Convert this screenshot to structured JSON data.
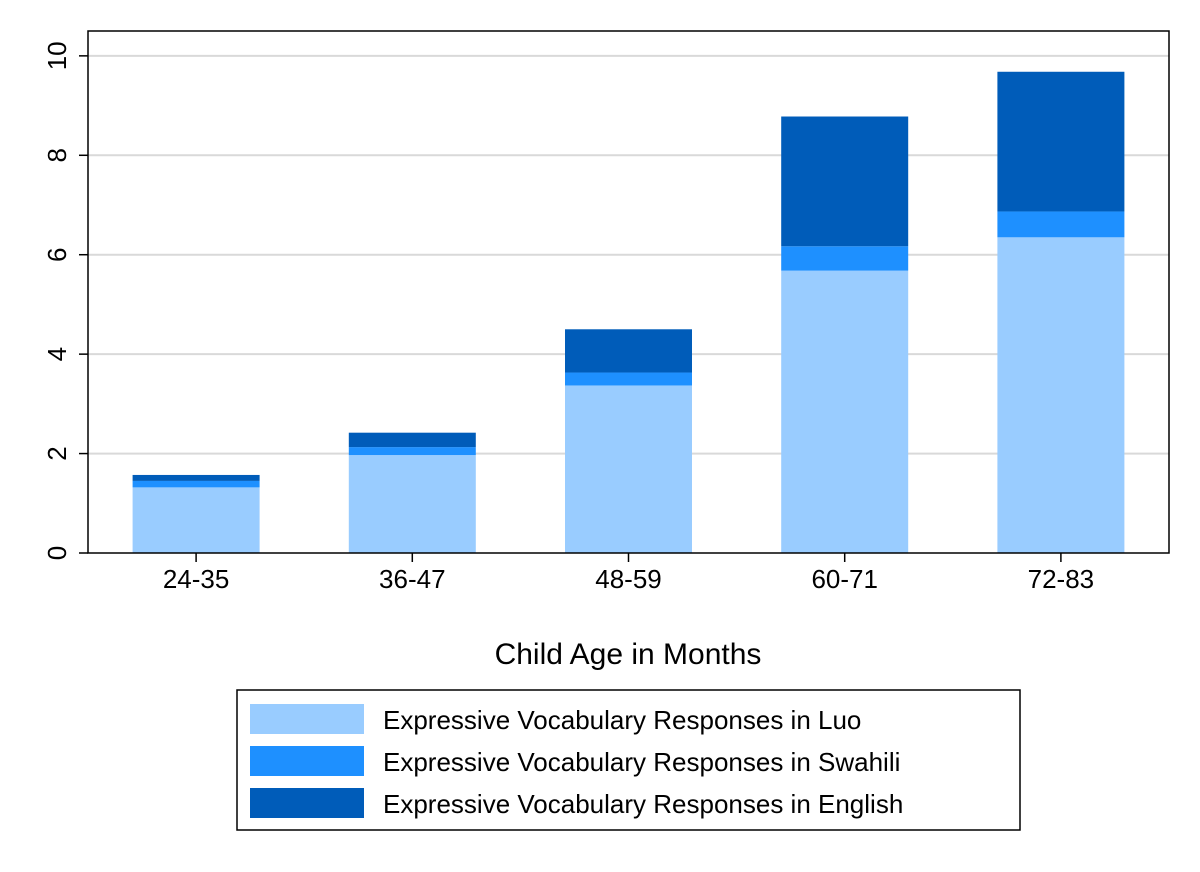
{
  "chart_data": {
    "type": "bar",
    "stacked": true,
    "title": "",
    "xlabel": "Child Age in Months",
    "ylabel": "",
    "ylim": [
      0,
      10.5
    ],
    "yticks": [
      0,
      2,
      4,
      6,
      8,
      10
    ],
    "categories": [
      "24-35",
      "36-47",
      "48-59",
      "60-71",
      "72-83"
    ],
    "series": [
      {
        "name": "Expressive Vocabulary Responses in Luo",
        "color": "#99ccff",
        "values": [
          1.32,
          1.97,
          3.37,
          5.68,
          6.35
        ]
      },
      {
        "name": "Expressive Vocabulary Responses in Swahili",
        "color": "#1e90ff",
        "values": [
          0.13,
          0.16,
          0.26,
          0.49,
          0.52
        ]
      },
      {
        "name": "Expressive Vocabulary Responses in English",
        "color": "#005cb9",
        "values": [
          0.12,
          0.29,
          0.87,
          2.61,
          2.81
        ]
      }
    ],
    "grid": true,
    "legend_position": "bottom"
  }
}
